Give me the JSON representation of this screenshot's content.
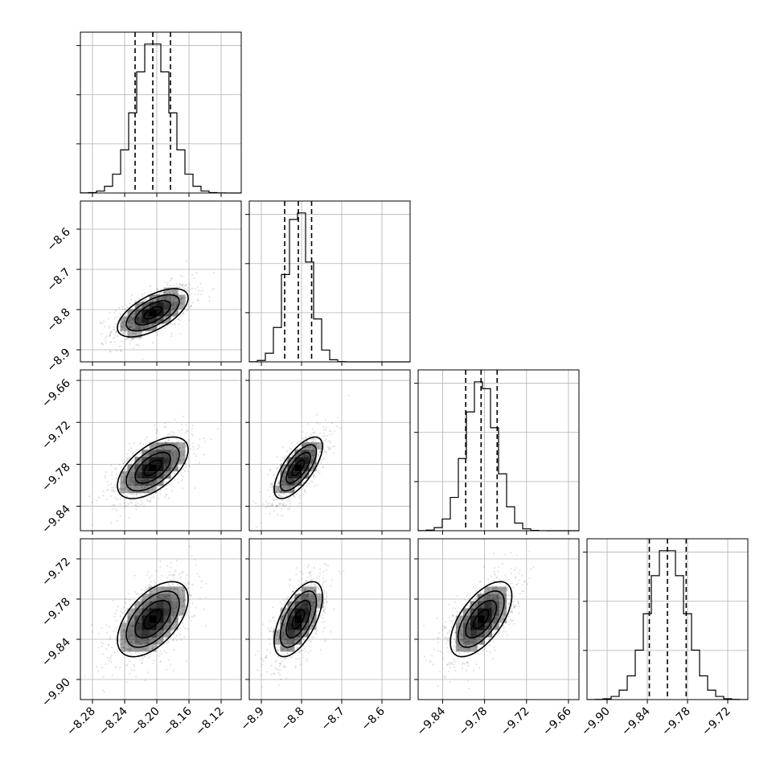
{
  "chart_data": {
    "type": "corner",
    "parameters": [
      {
        "range": [
          -8.295,
          -8.095
        ],
        "ticks": [
          -8.28,
          -8.24,
          -8.2,
          -8.16,
          -8.12
        ],
        "tick_labels": [
          "−8.28",
          "−8.24",
          "−8.20",
          "−8.16",
          "−8.12"
        ],
        "mean": -8.205,
        "sd": 0.022,
        "quantiles": [
          -8.227,
          -8.205,
          -8.183
        ]
      },
      {
        "range": [
          -8.93,
          -8.53
        ],
        "ticks": [
          -8.9,
          -8.8,
          -8.7,
          -8.6
        ],
        "tick_labels": [
          "−8.9",
          "−8.8",
          "−8.7",
          "−8.6"
        ],
        "mean": -8.808,
        "sd": 0.03,
        "quantiles": [
          -8.842,
          -8.808,
          -8.775
        ]
      },
      {
        "range": [
          -9.875,
          -9.645
        ],
        "ticks": [
          -9.84,
          -9.78,
          -9.72,
          -9.66
        ],
        "tick_labels": [
          "−9.84",
          "−9.78",
          "−9.72",
          "−9.66"
        ],
        "mean": -9.785,
        "sd": 0.022,
        "quantiles": [
          -9.807,
          -9.785,
          -9.762
        ]
      },
      {
        "range": [
          -9.93,
          -9.69
        ],
        "ticks": [
          -9.9,
          -9.84,
          -9.78,
          -9.72
        ],
        "tick_labels": [
          "−9.90",
          "−9.84",
          "−9.78",
          "−9.72"
        ],
        "mean": -9.81,
        "sd": 0.028,
        "quantiles": [
          -9.837,
          -9.81,
          -9.782
        ]
      }
    ],
    "correlations": [
      [
        1.0,
        0.62,
        0.58,
        0.55
      ],
      [
        0.62,
        1.0,
        0.7,
        0.6
      ],
      [
        0.58,
        0.7,
        1.0,
        0.62
      ],
      [
        0.55,
        0.6,
        0.62,
        1.0
      ]
    ],
    "histogram_bins": 20,
    "contour_levels_sigma": [
      0.5,
      1.0,
      1.5,
      2.0
    ],
    "grid": true
  }
}
